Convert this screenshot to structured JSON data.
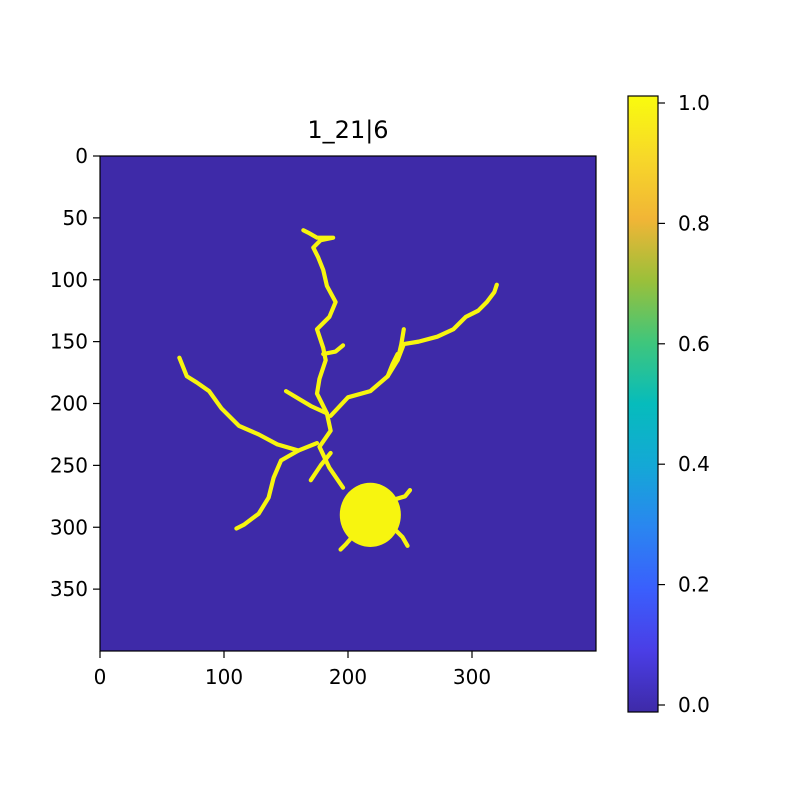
{
  "chart_data": {
    "type": "heatmap",
    "title": "1_21|6",
    "image_size": [
      400,
      400
    ],
    "xlim": [
      0,
      400
    ],
    "ylim": [
      400,
      0
    ],
    "x_ticks": [
      0,
      100,
      200,
      300
    ],
    "y_ticks": [
      0,
      50,
      100,
      150,
      200,
      250,
      300,
      350
    ],
    "x_tick_labels": [
      "0",
      "100",
      "200",
      "300"
    ],
    "y_tick_labels": [
      "0",
      "50",
      "100",
      "150",
      "200",
      "250",
      "300",
      "350"
    ],
    "background_value": 0.0,
    "foreground_value": 1.0,
    "foreground_color": "#f7f50f",
    "background_color": "#3e2aa8",
    "binary_mask_description": "neuron-like branching structure",
    "soma": {
      "center": [
        218,
        290
      ],
      "radius": 22,
      "value": 1.0
    },
    "branches": [
      {
        "name": "up",
        "points": [
          [
            196,
            268
          ],
          [
            185,
            252
          ],
          [
            177,
            235
          ],
          [
            186,
            222
          ],
          [
            183,
            208
          ],
          [
            175,
            192
          ],
          [
            177,
            180
          ],
          [
            182,
            165
          ],
          [
            180,
            155
          ],
          [
            175,
            140
          ],
          [
            185,
            130
          ],
          [
            190,
            118
          ],
          [
            183,
            105
          ],
          [
            180,
            92
          ],
          [
            176,
            82
          ],
          [
            172,
            74
          ],
          [
            178,
            68
          ],
          [
            188,
            66
          ],
          [
            175,
            66
          ],
          [
            168,
            62
          ],
          [
            164,
            60
          ]
        ]
      },
      {
        "name": "up-right",
        "points": [
          [
            186,
            210
          ],
          [
            200,
            195
          ],
          [
            218,
            190
          ],
          [
            232,
            178
          ],
          [
            240,
            165
          ],
          [
            245,
            152
          ],
          [
            257,
            150
          ],
          [
            272,
            146
          ],
          [
            285,
            140
          ],
          [
            295,
            130
          ],
          [
            305,
            125
          ],
          [
            312,
            118
          ],
          [
            318,
            110
          ],
          [
            320,
            104
          ]
        ]
      },
      {
        "name": "left-up",
        "points": [
          [
            175,
            232
          ],
          [
            160,
            238
          ],
          [
            143,
            233
          ],
          [
            128,
            225
          ],
          [
            112,
            218
          ],
          [
            98,
            204
          ],
          [
            88,
            190
          ],
          [
            78,
            183
          ],
          [
            70,
            178
          ],
          [
            66,
            168
          ],
          [
            64,
            163
          ]
        ]
      },
      {
        "name": "down-left",
        "points": [
          [
            160,
            238
          ],
          [
            146,
            246
          ],
          [
            140,
            260
          ],
          [
            136,
            276
          ],
          [
            128,
            289
          ],
          [
            116,
            298
          ],
          [
            110,
            301
          ]
        ]
      },
      {
        "name": "mid-left",
        "points": [
          [
            183,
            208
          ],
          [
            170,
            202
          ],
          [
            160,
            196
          ],
          [
            150,
            190
          ]
        ]
      },
      {
        "name": "right-nub",
        "points": [
          [
            232,
            178
          ],
          [
            236,
            168
          ],
          [
            240,
            160
          ]
        ]
      },
      {
        "name": "top-right-nub",
        "points": [
          [
            240,
            165
          ],
          [
            243,
            152
          ],
          [
            245,
            140
          ]
        ]
      },
      {
        "name": "twig-upper",
        "points": [
          [
            180,
            160
          ],
          [
            190,
            158
          ],
          [
            196,
            153
          ]
        ]
      },
      {
        "name": "twig-lower",
        "points": [
          [
            186,
            240
          ],
          [
            178,
            250
          ],
          [
            170,
            262
          ]
        ]
      },
      {
        "name": "soma-stubs",
        "points": [
          [
            236,
            278
          ],
          [
            246,
            275
          ],
          [
            250,
            270
          ]
        ]
      },
      {
        "name": "soma-stubs-2",
        "points": [
          [
            236,
            300
          ],
          [
            244,
            308
          ],
          [
            248,
            315
          ]
        ]
      },
      {
        "name": "soma-stubs-3",
        "points": [
          [
            205,
            306
          ],
          [
            198,
            314
          ],
          [
            194,
            318
          ]
        ]
      }
    ],
    "colorbar": {
      "min": 0.0,
      "max": 1.0,
      "ticks": [
        0.0,
        0.2,
        0.4,
        0.6,
        0.8,
        1.0
      ],
      "tick_labels": [
        "0.0",
        "0.2",
        "0.4",
        "0.6",
        "0.8",
        "1.0"
      ],
      "colormap_stops": [
        {
          "pos": 0.0,
          "color": "#3e2aa8"
        },
        {
          "pos": 0.1,
          "color": "#4a3ee6"
        },
        {
          "pos": 0.2,
          "color": "#3a5ffd"
        },
        {
          "pos": 0.3,
          "color": "#2a86f0"
        },
        {
          "pos": 0.4,
          "color": "#14a8d6"
        },
        {
          "pos": 0.5,
          "color": "#06bcbc"
        },
        {
          "pos": 0.6,
          "color": "#3fc67c"
        },
        {
          "pos": 0.7,
          "color": "#9ac03a"
        },
        {
          "pos": 0.8,
          "color": "#f1b536"
        },
        {
          "pos": 0.9,
          "color": "#f7d829"
        },
        {
          "pos": 1.0,
          "color": "#f9fb0e"
        }
      ]
    }
  }
}
